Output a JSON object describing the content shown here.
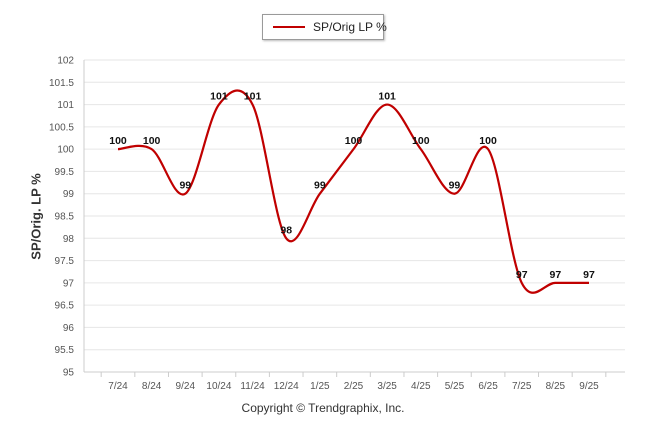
{
  "legend": {
    "label": "SP/Orig LP %",
    "color": "#c00000"
  },
  "credit": "Copyright © Trendgraphix, Inc.",
  "colors": {
    "line": "#c00000",
    "grid": "#e6e6e6",
    "axis": "#cccccc",
    "text": "#333333"
  },
  "chart_data": {
    "type": "line",
    "title": "",
    "xlabel": "",
    "ylabel": "SP/Orig. LP %",
    "ylim": [
      95,
      102
    ],
    "yticks": [
      "95",
      "95.5",
      "96",
      "96.5",
      "97",
      "97.5",
      "98",
      "98.5",
      "99",
      "99.5",
      "100",
      "100.5",
      "101",
      "101.5",
      "102"
    ],
    "grid": true,
    "legend_position": "top-center",
    "categories": [
      "7/24",
      "8/24",
      "9/24",
      "10/24",
      "11/24",
      "12/24",
      "1/25",
      "2/25",
      "3/25",
      "4/25",
      "5/25",
      "6/25",
      "7/25",
      "8/25",
      "9/25"
    ],
    "series": [
      {
        "name": "SP/Orig LP %",
        "values": [
          100,
          100,
          99,
          101,
          101,
          98,
          99,
          100,
          101,
          100,
          99,
          100,
          97,
          97,
          97
        ],
        "labels": [
          "100",
          "100",
          "99",
          "101",
          "101",
          "98",
          "99",
          "100",
          "101",
          "100",
          "99",
          "100",
          "97",
          "97",
          "97"
        ]
      }
    ]
  }
}
